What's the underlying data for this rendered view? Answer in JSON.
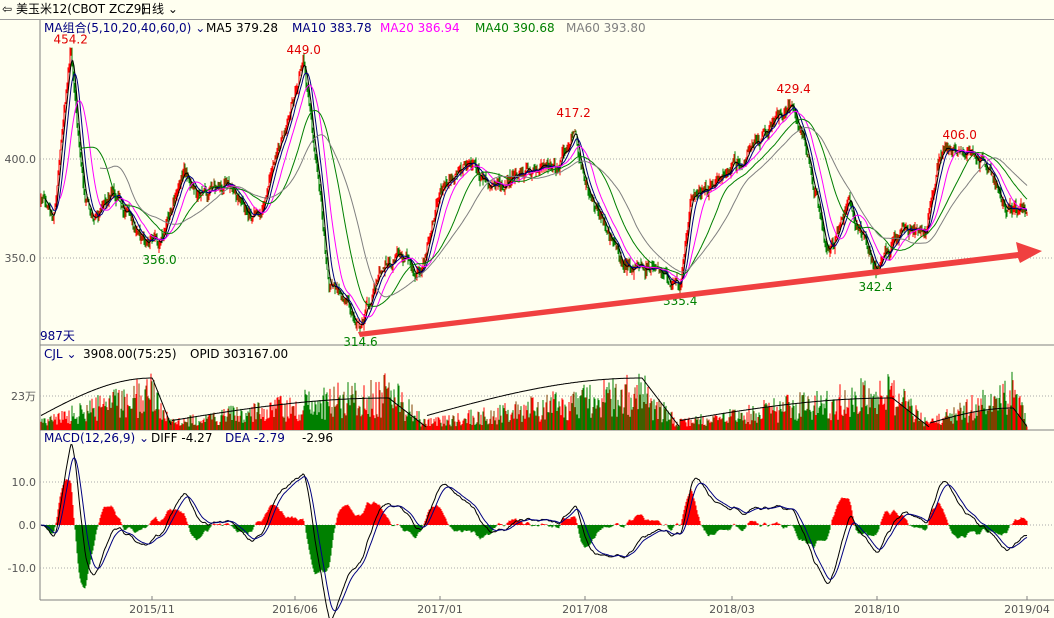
{
  "title_bar": {
    "icon": "back-arrow-icon",
    "instrument": "美玉米12(CBOT ZCZ9)",
    "period": "日线"
  },
  "main_panel": {
    "indicator": "MA组合(5,10,20,40,60,0)",
    "ma": [
      {
        "label": "MA5 379.28",
        "color": "#000000"
      },
      {
        "label": "MA10 383.78",
        "color": "#000080"
      },
      {
        "label": "MA20 386.94",
        "color": "#ff00ff"
      },
      {
        "label": "MA40 390.68",
        "color": "#008000"
      },
      {
        "label": "MA60 393.80",
        "color": "#808080"
      }
    ],
    "days": "987天",
    "y_ticks": [
      "400.0",
      "350.0"
    ],
    "annotations": {
      "arrow": "up-trend-arrow",
      "arrow_color": "#f04040"
    }
  },
  "volume_panel": {
    "indicator": "CJL",
    "value": "3908.00(75:25)",
    "opid": "OPID 303167.00",
    "y_tick": "23万"
  },
  "macd_panel": {
    "indicator": "MACD(12,26,9)",
    "diff": "DIFF -4.27",
    "dea": "DEA -2.79",
    "macd": "-2.96",
    "y_ticks": [
      "10.0",
      "0.0",
      "-10.0"
    ]
  },
  "x_ticks": [
    "2015/11",
    "2016/06",
    "2017/01",
    "2017/08",
    "2018/03",
    "2018/10",
    "2019/04"
  ],
  "chart_data": {
    "type": "candlestick",
    "bars": 987,
    "ylim": [
      305,
      460
    ],
    "price_path": [
      [
        "2015-05-20",
        380
      ],
      [
        "2015-06-10",
        370
      ],
      [
        "2015-07-05",
        454.2
      ],
      [
        "2015-07-25",
        380
      ],
      [
        "2015-08-10",
        368
      ],
      [
        "2015-09-01",
        385
      ],
      [
        "2015-10-15",
        362
      ],
      [
        "2015-11-12",
        356.0
      ],
      [
        "2015-12-18",
        395
      ],
      [
        "2016-01-10",
        380
      ],
      [
        "2016-02-15",
        388
      ],
      [
        "2016-04-06",
        368
      ],
      [
        "2016-04-28",
        398
      ],
      [
        "2016-06-10",
        449.0
      ],
      [
        "2016-07-03",
        385
      ],
      [
        "2016-07-17",
        335
      ],
      [
        "2016-08-09",
        330
      ],
      [
        "2016-09-01",
        314.6
      ],
      [
        "2016-10-01",
        345
      ],
      [
        "2016-10-28",
        352
      ],
      [
        "2016-11-28",
        340
      ],
      [
        "2016-12-26",
        385
      ],
      [
        "2017-02-09",
        398
      ],
      [
        "2017-03-08",
        384
      ],
      [
        "2017-04-21",
        392
      ],
      [
        "2017-06-18",
        396
      ],
      [
        "2017-07-10",
        417.2
      ],
      [
        "2017-08-02",
        380
      ],
      [
        "2017-09-01",
        362
      ],
      [
        "2017-09-22",
        346
      ],
      [
        "2017-10-28",
        345
      ],
      [
        "2017-12-13",
        335.4
      ],
      [
        "2017-12-28",
        380
      ],
      [
        "2018-02-09",
        390
      ],
      [
        "2018-04-06",
        408
      ],
      [
        "2018-05-28",
        429.4
      ],
      [
        "2018-06-19",
        398
      ],
      [
        "2018-07-19",
        352
      ],
      [
        "2018-08-17",
        378
      ],
      [
        "2018-09-25",
        342.4
      ],
      [
        "2018-11-01",
        365
      ],
      [
        "2018-12-07",
        362
      ],
      [
        "2018-12-28",
        404
      ],
      [
        "2019-01-26",
        406.0
      ],
      [
        "2019-03-10",
        395
      ],
      [
        "2019-04-03",
        375
      ]
    ],
    "highs": [
      {
        "label": "454.2",
        "date": "2015-07-05"
      },
      {
        "label": "449.0",
        "date": "2016-06-10"
      },
      {
        "label": "417.2",
        "date": "2017-07-10"
      },
      {
        "label": "429.4",
        "date": "2018-05-28"
      },
      {
        "label": "406.0",
        "date": "2019-01-26"
      }
    ],
    "lows": [
      {
        "label": "356.0",
        "date": "2015-11-12"
      },
      {
        "label": "314.6",
        "date": "2016-09-01"
      },
      {
        "label": "335.4",
        "date": "2017-12-13"
      },
      {
        "label": "342.4",
        "date": "2018-09-25"
      }
    ],
    "colors": {
      "up": "#ff0000",
      "down": "#008000",
      "flat": "#804000",
      "high_label": "#e00000",
      "low_label": "#008000"
    }
  }
}
